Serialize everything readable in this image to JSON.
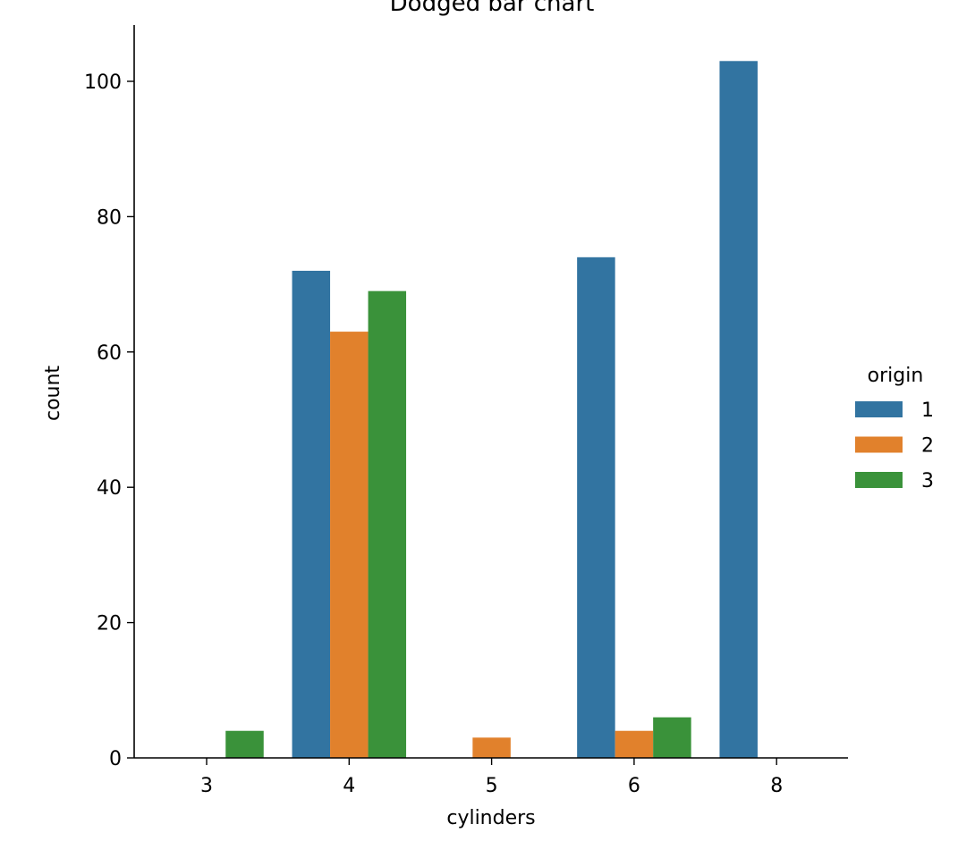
{
  "chart_data": {
    "type": "bar",
    "title": "Dodged bar chart",
    "xlabel": "cylinders",
    "ylabel": "count",
    "categories": [
      "3",
      "4",
      "5",
      "6",
      "8"
    ],
    "ylim": [
      0,
      108
    ],
    "yticks": [
      0,
      20,
      40,
      60,
      80,
      100
    ],
    "grid": false,
    "legend": {
      "title": "origin",
      "position": "right"
    },
    "series": [
      {
        "name": "1",
        "color": "#3274a1",
        "values": [
          0,
          72,
          0,
          74,
          103
        ]
      },
      {
        "name": "2",
        "color": "#e1812c",
        "values": [
          0,
          63,
          3,
          4,
          0
        ]
      },
      {
        "name": "3",
        "color": "#3a923a",
        "values": [
          4,
          69,
          0,
          6,
          0
        ]
      }
    ]
  }
}
